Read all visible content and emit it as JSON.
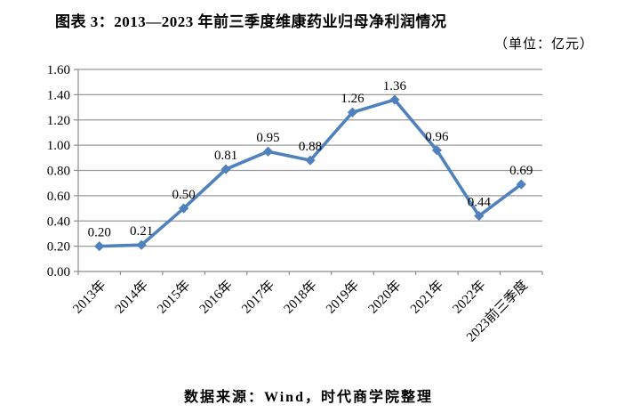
{
  "page": {
    "title": "图表 3：2013—2023 年前三季度维康药业归母净利润情况",
    "unit_note": "（单位：亿元）",
    "source_note": "数据来源：Wind，时代商学院整理"
  },
  "colors": {
    "line": "#4F81BD",
    "grid": "#9A9A9A",
    "axis": "#8C8C8C",
    "text": "#000000"
  },
  "chart_data": {
    "type": "line",
    "title": "图表 3：2013—2023 年前三季度维康药业归母净利润情况",
    "unit": "亿元",
    "categories": [
      "2013年",
      "2014年",
      "2015年",
      "2016年",
      "2017年",
      "2018年",
      "2019年",
      "2020年",
      "2021年",
      "2022年",
      "2023前三季度"
    ],
    "values": [
      0.2,
      0.21,
      0.5,
      0.81,
      0.95,
      0.88,
      1.26,
      1.36,
      0.96,
      0.44,
      0.69
    ],
    "data_labels": [
      "0.20",
      "0.21",
      "0.50",
      "0.81",
      "0.95",
      "0.88",
      "1.26",
      "1.36",
      "0.96",
      "0.44",
      "0.69"
    ],
    "ylim": [
      0,
      1.6
    ],
    "ytick_step": 0.2,
    "ytick_labels": [
      "0.00",
      "0.20",
      "0.40",
      "0.60",
      "0.80",
      "1.00",
      "1.20",
      "1.40",
      "1.60"
    ],
    "grid": true,
    "legend": "none",
    "marker": "diamond"
  }
}
